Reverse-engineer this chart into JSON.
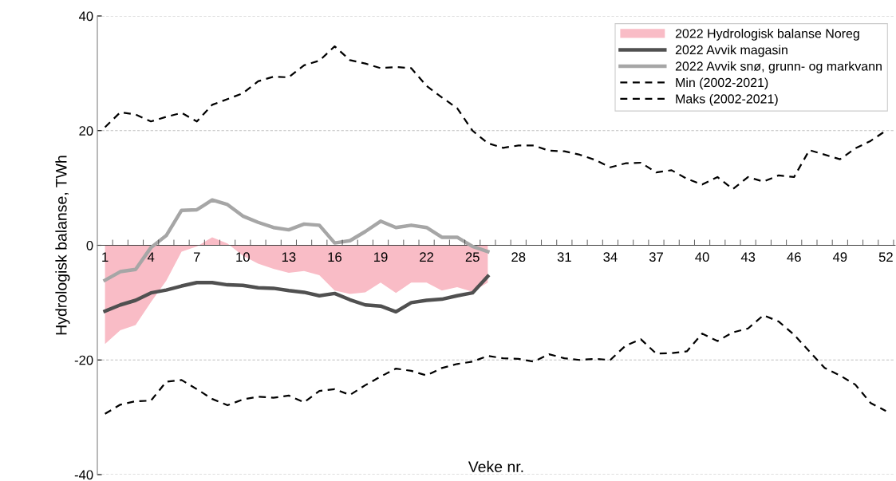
{
  "chart_data": {
    "type": "line",
    "ylabel": "Hydrologisk balanse, TWh",
    "xlabel": "Veke nr.",
    "categories": [
      "1",
      null,
      null,
      "4",
      null,
      null,
      "7",
      null,
      null,
      "10",
      null,
      null,
      "13",
      null,
      null,
      "16",
      null,
      null,
      "19",
      null,
      null,
      "22",
      null,
      null,
      "25",
      null,
      null,
      "28",
      null,
      null,
      "31",
      null,
      null,
      "34",
      null,
      null,
      "37",
      null,
      null,
      "40",
      null,
      null,
      "43",
      null,
      null,
      "46",
      null,
      null,
      "49",
      null,
      null,
      "52"
    ],
    "ylim": [
      -40,
      40
    ],
    "yticks": [
      -40,
      -20,
      0,
      20,
      40
    ],
    "grid": "y",
    "legend": "top right",
    "series": [
      {
        "name": "2022 Hydrologisk balanse Noreg",
        "type": "area",
        "color": "#f9bcc6",
        "values": [
          -17.2,
          -14.8,
          -13.9,
          -9.9,
          -6.2,
          -1.1,
          -0.2,
          1.4,
          0.3,
          -1.8,
          -3.2,
          -4.1,
          -4.8,
          -4.5,
          -5.2,
          -7.9,
          -8.5,
          -8.2,
          -6.5,
          -8.3,
          -6.5,
          -6.5,
          -7.9,
          -7.3,
          -8.1,
          -6.5,
          null,
          null,
          null,
          null,
          null,
          null,
          null,
          null,
          null,
          null,
          null,
          null,
          null,
          null,
          null,
          null,
          null,
          null,
          null,
          null,
          null,
          null,
          null,
          null,
          null,
          null
        ]
      },
      {
        "name": "2022 Avvik magasin",
        "type": "line",
        "line_style": "solid",
        "color": "#505050",
        "values": [
          -11.5,
          -10.4,
          -9.6,
          -8.3,
          -7.8,
          -7.1,
          -6.5,
          -6.5,
          -6.9,
          -7.0,
          -7.4,
          -7.5,
          -7.9,
          -8.2,
          -8.8,
          -8.4,
          -9.5,
          -10.4,
          -10.6,
          -11.6,
          -10.0,
          -9.6,
          -9.4,
          -8.8,
          -8.3,
          -5.4,
          null,
          null,
          null,
          null,
          null,
          null,
          null,
          null,
          null,
          null,
          null,
          null,
          null,
          null,
          null,
          null,
          null,
          null,
          null,
          null,
          null,
          null,
          null,
          null,
          null,
          null
        ]
      },
      {
        "name": "2022 Avvik snø, grunn- og markvann",
        "type": "line",
        "line_style": "solid",
        "color": "#a6a6a6",
        "values": [
          -6.1,
          -4.6,
          -4.2,
          -0.4,
          1.7,
          6.1,
          6.2,
          7.9,
          7.1,
          5.1,
          4.0,
          3.1,
          2.7,
          3.7,
          3.5,
          0.4,
          0.8,
          2.4,
          4.2,
          3.1,
          3.5,
          3.1,
          1.4,
          1.4,
          -0.2,
          -1.1,
          null,
          null,
          null,
          null,
          null,
          null,
          null,
          null,
          null,
          null,
          null,
          null,
          null,
          null,
          null,
          null,
          null,
          null,
          null,
          null,
          null,
          null,
          null,
          null,
          null,
          null
        ]
      },
      {
        "name": "Min (2002-2021)",
        "type": "line",
        "line_style": "dashed",
        "color": "#000000",
        "values": [
          -29.4,
          -27.8,
          -27.2,
          -27.1,
          -23.8,
          -23.5,
          -25.1,
          -26.8,
          -27.9,
          -26.9,
          -26.4,
          -26.6,
          -26.2,
          -27.4,
          -25.4,
          -25.1,
          -26.1,
          -24.4,
          -22.9,
          -21.5,
          -21.9,
          -22.7,
          -21.4,
          -20.7,
          -20.3,
          -19.3,
          -19.7,
          -19.8,
          -20.3,
          -19.0,
          -19.7,
          -20.0,
          -19.8,
          -20.0,
          -17.5,
          -16.4,
          -18.9,
          -18.8,
          -18.5,
          -15.4,
          -16.7,
          -15.2,
          -14.5,
          -12.2,
          -13.3,
          -15.6,
          -18.5,
          -21.4,
          -22.7,
          -24.3,
          -27.5,
          -28.9
        ]
      },
      {
        "name": "Maks (2002-2021)",
        "type": "line",
        "line_style": "dashed",
        "color": "#000000",
        "values": [
          20.6,
          23.2,
          22.8,
          21.6,
          22.4,
          23.1,
          21.6,
          24.5,
          25.5,
          26.5,
          28.6,
          29.4,
          29.3,
          31.4,
          32.2,
          34.7,
          32.3,
          31.7,
          30.9,
          31.1,
          30.9,
          27.8,
          25.8,
          23.9,
          20.0,
          17.8,
          17.0,
          17.4,
          17.4,
          16.5,
          16.4,
          15.8,
          14.9,
          13.6,
          14.3,
          14.4,
          12.7,
          13.1,
          11.6,
          10.6,
          11.9,
          9.8,
          11.9,
          11.1,
          12.2,
          11.9,
          16.6,
          15.8,
          15.0,
          16.9,
          18.2,
          20.0
        ]
      }
    ]
  }
}
